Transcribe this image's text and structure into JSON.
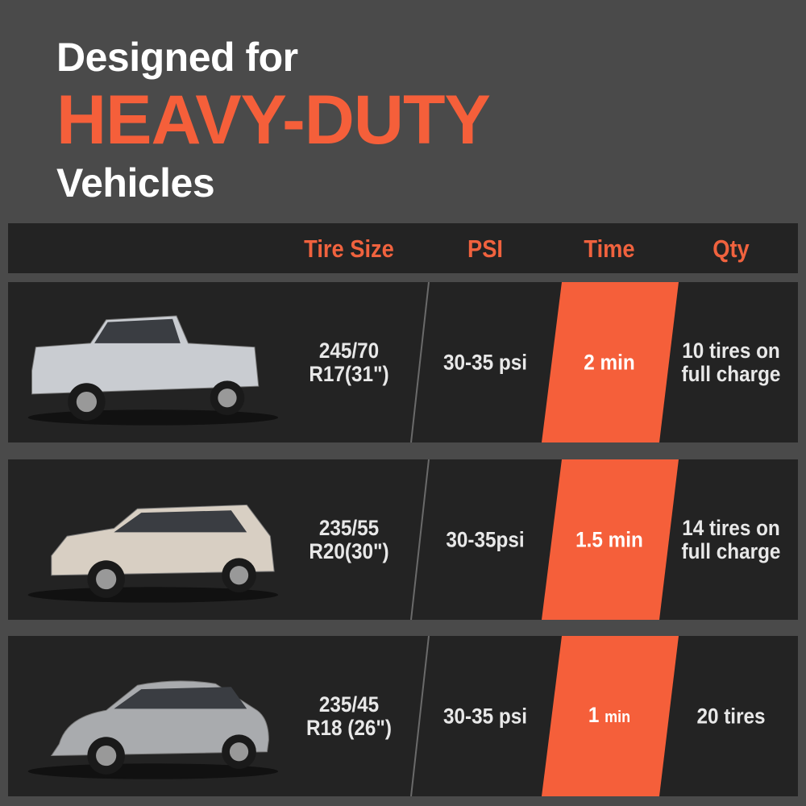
{
  "title": {
    "line1": "Designed for",
    "line2": "HEAVY-DUTY",
    "line3": "Vehicles"
  },
  "colors": {
    "accent": "#f55f3a",
    "background": "#4a4a4a",
    "panel": "#232323"
  },
  "table": {
    "headers": [
      "Tire Size",
      "PSI",
      "Time",
      "Qty"
    ],
    "rows": [
      {
        "vehicle": "pickup-truck-image",
        "tire_line1": "245/70",
        "tire_line2": "R17(31\")",
        "psi": "30-35 psi",
        "time_num": "2 min",
        "time_unit": "",
        "qty_line1": "10 tires on",
        "qty_line2": "full charge",
        "car_color": "#c9ccd1"
      },
      {
        "vehicle": "suv-image",
        "tire_line1": "235/55",
        "tire_line2": "R20(30\")",
        "psi": "30-35psi",
        "time_num": "1.5 min",
        "time_unit": "",
        "qty_line1": "14 tires on",
        "qty_line2": "full charge",
        "car_color": "#d8cfc3"
      },
      {
        "vehicle": "sedan-image",
        "tire_line1": "235/45",
        "tire_line2": "R18 (26\")",
        "psi": "30-35 psi",
        "time_num": "1",
        "time_unit": "min",
        "qty_line1": "20 tires",
        "qty_line2": "",
        "car_color": "#a9abae"
      }
    ]
  }
}
